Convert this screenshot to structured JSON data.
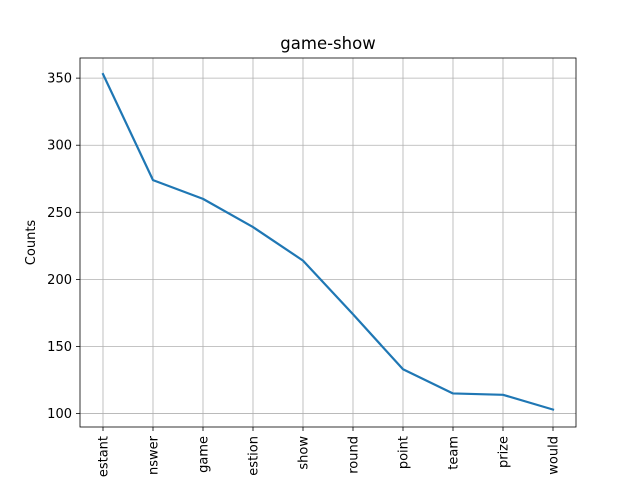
{
  "chart_data": {
    "type": "line",
    "title": "game-show",
    "xlabel": "",
    "ylabel": "Counts",
    "categories": [
      "estant",
      "nswer",
      "game",
      "estion",
      "show",
      "round",
      "point",
      "team",
      "prize",
      "would"
    ],
    "series": [
      {
        "values": [
          353,
          274,
          260,
          239,
          214,
          174,
          133,
          115,
          114,
          103
        ]
      }
    ],
    "ylim": [
      90,
      365
    ],
    "yticks": [
      100,
      150,
      200,
      250,
      300,
      350
    ],
    "grid": true,
    "line_color": "#1f77b4"
  }
}
